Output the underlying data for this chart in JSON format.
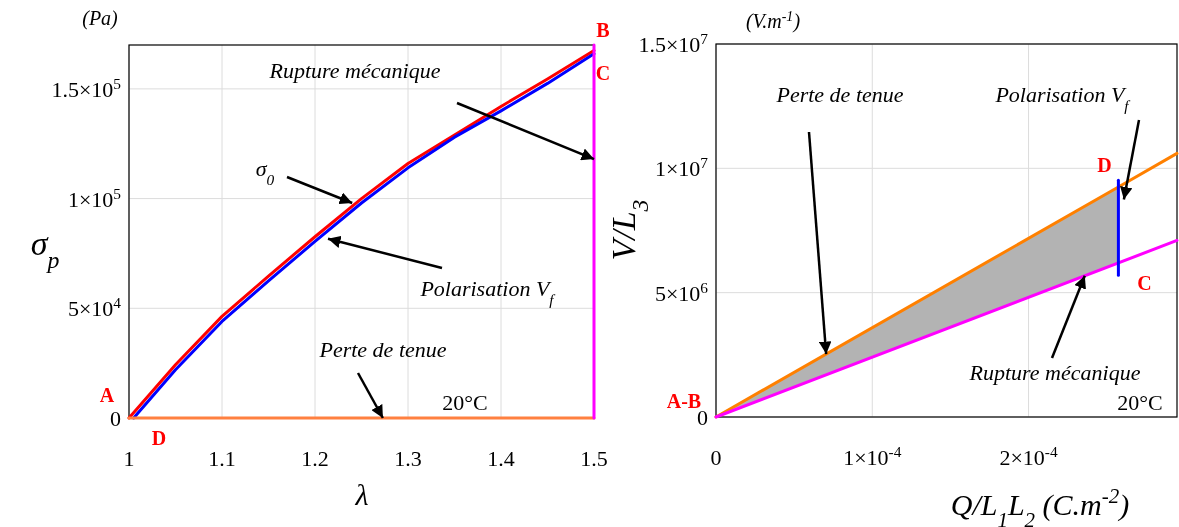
{
  "chart_data": [
    {
      "type": "line",
      "xlabel": "λ",
      "ylabel": "σ$_{p}$",
      "xlim": [
        1,
        1.5
      ],
      "ylim": [
        0,
        170000
      ],
      "xticks": [
        1,
        1.1,
        1.2,
        1.3,
        1.4,
        1.5
      ],
      "yticks": [
        0,
        {
          "value": 50000,
          "label": "5×10$^{4}$"
        },
        {
          "value": 100000,
          "label": "1×10$^{5}$"
        },
        {
          "value": 150000,
          "label": "1.5×10$^{5}$"
        }
      ],
      "grid": true,
      "series": [
        {
          "color": "#ff0000",
          "x": [
            1,
            1.05,
            1.1,
            1.15,
            1.2,
            1.25,
            1.3,
            1.35,
            1.4,
            1.45,
            1.5
          ],
          "values": [
            0,
            24300,
            46300,
            64700,
            82600,
            100000,
            116000,
            129000,
            142000,
            154500,
            167500
          ]
        },
        {
          "color": "#0000ff",
          "x": [
            1.005,
            1.05,
            1.1,
            1.15,
            1.2,
            1.25,
            1.3,
            1.35,
            1.4,
            1.45,
            1.5
          ],
          "values": [
            0,
            22000,
            44000,
            62500,
            80500,
            98000,
            114000,
            128000,
            140000,
            152500,
            166000
          ]
        },
        {
          "color": "#ff8040",
          "x": [
            1,
            1.5
          ],
          "values": [
            0,
            0
          ]
        },
        {
          "color": "#ff00ff",
          "x": [
            1.5,
            1.5
          ],
          "values": [
            0,
            170000
          ]
        }
      ],
      "annotations": [
        "(Pa)",
        {
          "text": "Rupture mécanique",
          "x": 1.5,
          "y": 118000
        },
        {
          "text": "σ$_{0}$",
          "x": 1.24,
          "y": 98000
        },
        {
          "text": "Polarisation V$_{f}$",
          "x": 1.214,
          "y": 81700
        },
        {
          "text": "Perte de tenue",
          "x": 1.273,
          "y": 0
        },
        "20°C",
        {
          "text": "A",
          "x": 1,
          "y": 0
        },
        {
          "text": "D",
          "x": 1,
          "y": 0
        },
        {
          "text": "B",
          "x": 1.5,
          "y": 170000
        },
        {
          "text": "C",
          "x": 1.5,
          "y": 167500
        }
      ]
    },
    {
      "type": "line",
      "xlabel": "Q/L$_{1}$L$_{2}$   (C.m$^{-2}$)",
      "ylabel": "V/L$_{3}$",
      "xlim": [
        0,
        0.000295
      ],
      "ylim": [
        0,
        15000000
      ],
      "xticks": [
        0,
        {
          "value": 0.0001,
          "label": "1×10$^{-4}$"
        },
        {
          "value": 0.0002,
          "label": "2×10$^{-4}$"
        }
      ],
      "yticks": [
        0,
        {
          "value": 5000000,
          "label": "5×10$^{6}$"
        },
        {
          "value": 10000000,
          "label": "1×10$^{7}$"
        },
        {
          "value": 15000000,
          "label": "1.5×10$^{7}$"
        }
      ],
      "grid": true,
      "series": [
        {
          "color": "#ff8000",
          "x": [
            0,
            0.0002575,
            0.000295
          ],
          "values": [
            0,
            9250000,
            10600000
          ],
          "lower": [
            0,
            6200000,
            null
          ],
          "upper": [
            0,
            9250000,
            null
          ]
        },
        {
          "color": "#ff00ff",
          "x": [
            0,
            0.000295
          ],
          "values": [
            0,
            7100000
          ]
        },
        {
          "color": "#0000ff",
          "x": [
            0.0002575,
            0.0002575
          ],
          "values": [
            5700000,
            9520000
          ]
        }
      ],
      "annotations": [
        "(V.m$^{-1}$)",
        {
          "text": "Perte de tenue",
          "x": 7.05e-05,
          "y": 2530000
        },
        {
          "text": "Polarisation V$_{f}$",
          "x": 0.000261,
          "y": 8750000
        },
        {
          "text": "Rupture mécanique",
          "x": 0.000236,
          "y": 5680000
        },
        "20°C",
        {
          "text": "A-B",
          "x": 0,
          "y": 0
        },
        {
          "text": "D",
          "x": 0.0002575,
          "y": 9520000
        },
        {
          "text": "C",
          "x": 0.0002575,
          "y": 6000000
        }
      ]
    }
  ]
}
